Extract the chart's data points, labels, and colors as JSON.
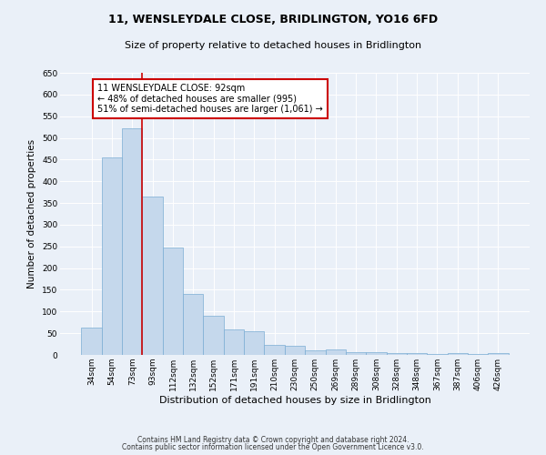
{
  "title": "11, WENSLEYDALE CLOSE, BRIDLINGTON, YO16 6FD",
  "subtitle": "Size of property relative to detached houses in Bridlington",
  "xlabel": "Distribution of detached houses by size in Bridlington",
  "ylabel": "Number of detached properties",
  "categories": [
    "34sqm",
    "54sqm",
    "73sqm",
    "93sqm",
    "112sqm",
    "132sqm",
    "152sqm",
    "171sqm",
    "191sqm",
    "210sqm",
    "230sqm",
    "250sqm",
    "269sqm",
    "289sqm",
    "308sqm",
    "328sqm",
    "348sqm",
    "367sqm",
    "387sqm",
    "406sqm",
    "426sqm"
  ],
  "values": [
    62,
    456,
    522,
    365,
    248,
    140,
    91,
    59,
    54,
    23,
    22,
    10,
    12,
    7,
    6,
    5,
    4,
    3,
    4,
    3,
    4
  ],
  "bar_color": "#c5d8ec",
  "bar_edge_color": "#7aadd4",
  "annotation_text": "11 WENSLEYDALE CLOSE: 92sqm\n← 48% of detached houses are smaller (995)\n51% of semi-detached houses are larger (1,061) →",
  "annotation_box_color": "#ffffff",
  "annotation_box_edge": "#cc0000",
  "line_color": "#cc0000",
  "property_line_idx": 2,
  "ylim": [
    0,
    650
  ],
  "yticks": [
    0,
    50,
    100,
    150,
    200,
    250,
    300,
    350,
    400,
    450,
    500,
    550,
    600,
    650
  ],
  "footer1": "Contains HM Land Registry data © Crown copyright and database right 2024.",
  "footer2": "Contains public sector information licensed under the Open Government Licence v3.0.",
  "bg_color": "#eaf0f8",
  "grid_color": "#ffffff",
  "title_fontsize": 9,
  "subtitle_fontsize": 8,
  "xlabel_fontsize": 8,
  "ylabel_fontsize": 7.5,
  "tick_fontsize": 6.5,
  "annotation_fontsize": 7,
  "footer_fontsize": 5.5
}
